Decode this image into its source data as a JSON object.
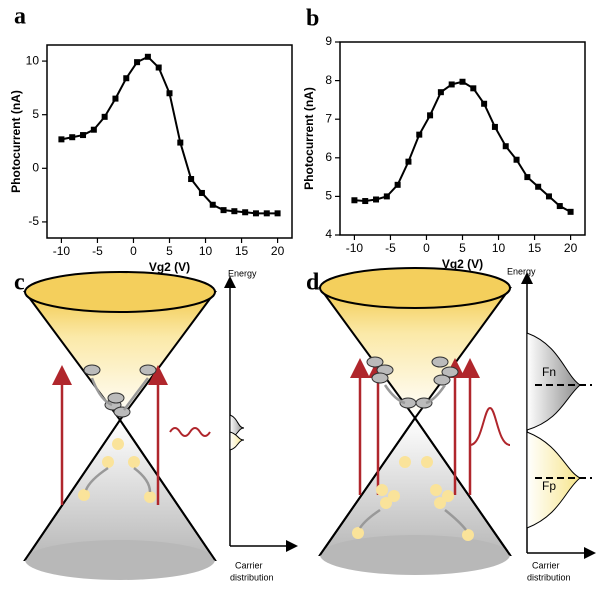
{
  "chart_data": [
    {
      "type": "line",
      "label": "a",
      "x_label": "Vg2 (V)",
      "y_label": "Photocurrent (nA)",
      "color": "#000000",
      "x": [
        -10,
        -8.5,
        -7,
        -5.5,
        -4,
        -2.5,
        -1,
        0.5,
        2,
        3.5,
        5,
        6.5,
        8,
        9.5,
        11,
        12.5,
        14,
        15.5,
        17,
        18.5,
        20
      ],
      "values": [
        2.7,
        2.9,
        3.1,
        3.6,
        4.8,
        6.5,
        8.4,
        9.9,
        10.4,
        9.4,
        7.0,
        2.4,
        -1.0,
        -2.3,
        -3.4,
        -3.9,
        -4.0,
        -4.1,
        -4.2,
        -4.2,
        -4.2
      ],
      "xlim": [
        -12,
        22
      ],
      "ylim": [
        -6.5,
        11.5
      ],
      "xticks": [
        -10,
        -5,
        0,
        5,
        10,
        15,
        20
      ],
      "yticks": [
        -5,
        0,
        5,
        10
      ]
    },
    {
      "type": "line",
      "label": "b",
      "x_label": "Vg2 (V)",
      "y_label": "Photocurrent (nA)",
      "color": "#000000",
      "x": [
        -10,
        -8.5,
        -7,
        -5.5,
        -4,
        -2.5,
        -1,
        0.5,
        2,
        3.5,
        5,
        6.5,
        8,
        9.5,
        11,
        12.5,
        14,
        15.5,
        17,
        18.5,
        20
      ],
      "values": [
        4.9,
        4.88,
        4.92,
        5.0,
        5.3,
        5.9,
        6.6,
        7.1,
        7.7,
        7.9,
        7.97,
        7.8,
        7.4,
        6.8,
        6.3,
        5.95,
        5.5,
        5.25,
        5.0,
        4.75,
        4.6
      ],
      "xlim": [
        -12,
        22
      ],
      "ylim": [
        4,
        9
      ],
      "xticks": [
        -10,
        -5,
        0,
        5,
        10,
        15,
        20
      ],
      "yticks": [
        4,
        5,
        6,
        7,
        8,
        9
      ]
    }
  ],
  "diagrams": [
    {
      "label": "c",
      "y_axis": "Energy",
      "x_axis": [
        "Carrier",
        "distribution"
      ]
    },
    {
      "label": "d",
      "y_axis": "Energy",
      "x_axis": [
        "Carrier",
        "distribution"
      ],
      "levels": [
        "Fn",
        "Fp"
      ]
    }
  ]
}
